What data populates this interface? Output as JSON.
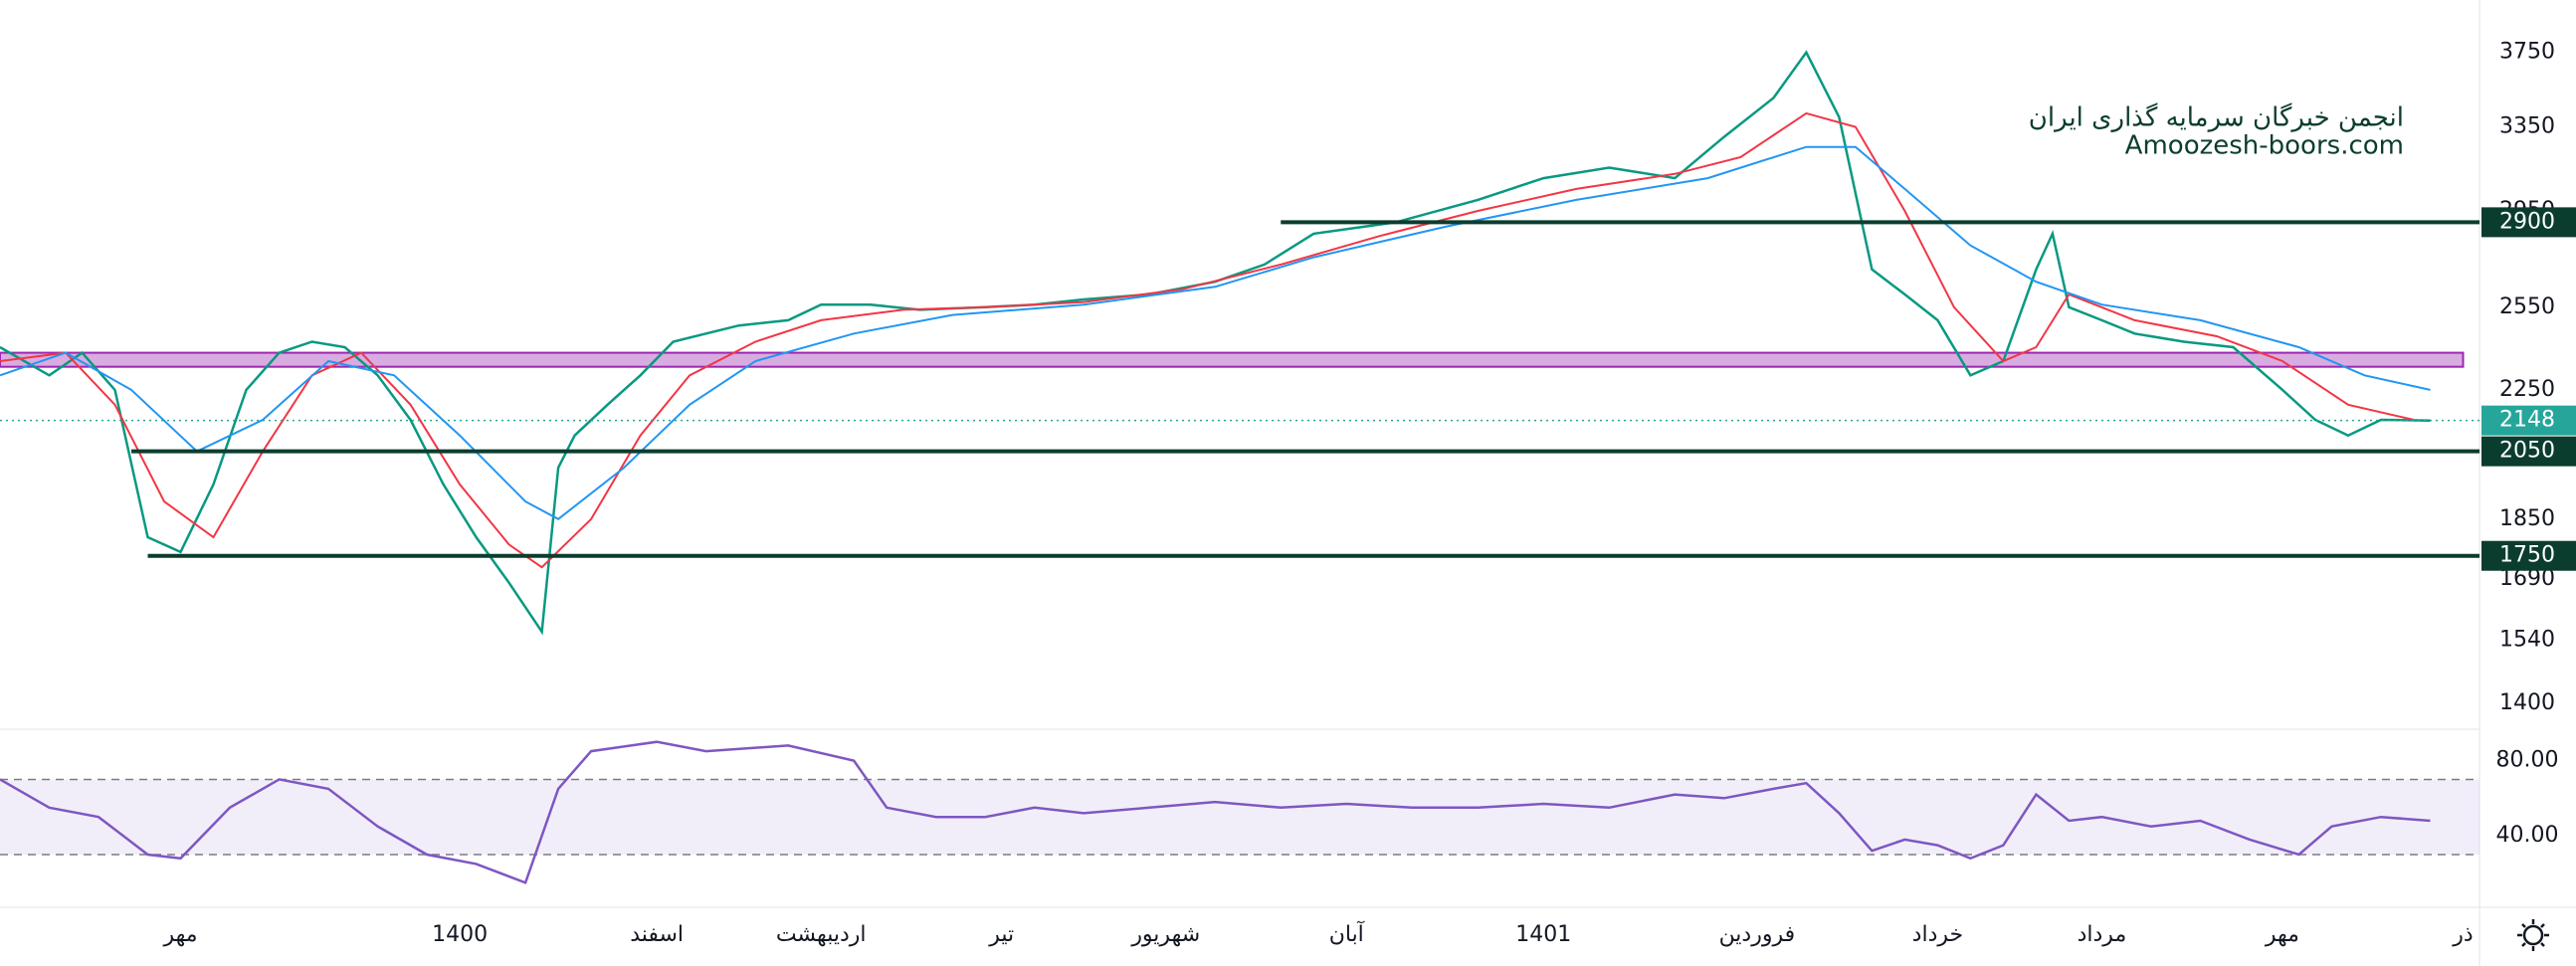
{
  "chart_data": [
    {
      "type": "line",
      "log_scale": true,
      "watermark": [
        "انجمن خبرگان سرمایه گذاری ایران",
        "Amoozesh-boors.com"
      ],
      "xlim": [
        0,
        151
      ],
      "xticks": [
        {
          "value": 11,
          "label": "مهر"
        },
        {
          "value": 28,
          "label": "1400"
        },
        {
          "value": 40,
          "label": "اسفند"
        },
        {
          "value": 50,
          "label": "اردیبهشت"
        },
        {
          "value": 61,
          "label": "تیر"
        },
        {
          "value": 71,
          "label": "شهریور"
        },
        {
          "value": 82,
          "label": "آبان"
        },
        {
          "value": 94,
          "label": "1401"
        },
        {
          "value": 107,
          "label": "فروردین"
        },
        {
          "value": 118,
          "label": "خرداد"
        },
        {
          "value": 128,
          "label": "مرداد"
        },
        {
          "value": 139,
          "label": "مهر"
        },
        {
          "value": 150,
          "label": "ذر"
        }
      ],
      "ylim": [
        1350,
        4060
      ],
      "yticks": [
        3750,
        3350,
        2950,
        2550,
        2250,
        1850,
        1690,
        1540,
        1400
      ],
      "series": [
        {
          "color": "#089981",
          "x": [
            0,
            3,
            5,
            7,
            9,
            11,
            13,
            15,
            17,
            19,
            21,
            23,
            25,
            27,
            29,
            31,
            33,
            34,
            35,
            37,
            39,
            41,
            43,
            45,
            48,
            50,
            53,
            56,
            60,
            63,
            66,
            70,
            74,
            77,
            80,
            85,
            90,
            94,
            98,
            102,
            105,
            108,
            110,
            112,
            114,
            116,
            118,
            120,
            122,
            124,
            125,
            126,
            128,
            130,
            133,
            136,
            139,
            141,
            143,
            145,
            148
          ],
          "values": [
            2400,
            2300,
            2380,
            2250,
            1800,
            1760,
            1950,
            2250,
            2380,
            2420,
            2400,
            2300,
            2150,
            1950,
            1800,
            1680,
            1560,
            2000,
            2100,
            2200,
            2300,
            2420,
            2450,
            2480,
            2500,
            2560,
            2560,
            2540,
            2550,
            2560,
            2580,
            2600,
            2650,
            2720,
            2850,
            2900,
            3000,
            3100,
            3150,
            3100,
            3300,
            3500,
            3750,
            3400,
            2700,
            2600,
            2500,
            2300,
            2350,
            2700,
            2850,
            2550,
            2500,
            2450,
            2420,
            2400,
            2250,
            2150,
            2100,
            2150,
            2148
          ]
        },
        {
          "color": "#f23645",
          "x": [
            0,
            4,
            7,
            10,
            13,
            16,
            19,
            22,
            25,
            28,
            31,
            33,
            36,
            39,
            42,
            46,
            50,
            55,
            60,
            66,
            72,
            78,
            84,
            90,
            96,
            102,
            106,
            110,
            113,
            116,
            119,
            122,
            124,
            126,
            130,
            135,
            139,
            143,
            147
          ],
          "values": [
            2350,
            2380,
            2200,
            1900,
            1800,
            2050,
            2300,
            2380,
            2200,
            1950,
            1780,
            1720,
            1850,
            2100,
            2300,
            2420,
            2500,
            2540,
            2550,
            2570,
            2620,
            2720,
            2840,
            2950,
            3050,
            3120,
            3200,
            3420,
            3350,
            2950,
            2550,
            2350,
            2400,
            2600,
            2500,
            2440,
            2350,
            2200,
            2150
          ]
        },
        {
          "color": "#2196f3",
          "x": [
            0,
            4,
            8,
            12,
            16,
            20,
            24,
            28,
            32,
            34,
            38,
            42,
            46,
            52,
            58,
            66,
            74,
            80,
            88,
            96,
            104,
            110,
            113,
            116,
            120,
            124,
            128,
            134,
            140,
            144,
            148
          ],
          "values": [
            2300,
            2380,
            2250,
            2050,
            2150,
            2350,
            2300,
            2100,
            1900,
            1850,
            2000,
            2200,
            2350,
            2450,
            2520,
            2560,
            2630,
            2750,
            2880,
            3000,
            3100,
            3250,
            3250,
            3050,
            2800,
            2650,
            2560,
            2500,
            2400,
            2300,
            2250
          ]
        }
      ],
      "zone": [
        2330,
        2380
      ],
      "levels": [
        {
          "value": 2900,
          "x0": 78
        },
        {
          "value": 2050,
          "x0": 8
        },
        {
          "value": 1750,
          "x0": 9
        }
      ],
      "last": 2148
    },
    {
      "type": "line",
      "xlim": [
        0,
        151
      ],
      "ylim": [
        3,
        93
      ],
      "yticks": [
        {
          "value": 80,
          "label": "80.00"
        },
        {
          "value": 40,
          "label": "40.00"
        }
      ],
      "band": [
        30,
        70
      ],
      "series": [
        {
          "color": "#7e57c2",
          "x": [
            0,
            3,
            6,
            9,
            11,
            14,
            17,
            20,
            23,
            26,
            29,
            32,
            34,
            36,
            40,
            43,
            48,
            52,
            54,
            57,
            60,
            63,
            66,
            70,
            74,
            78,
            82,
            86,
            90,
            94,
            98,
            102,
            105,
            108,
            110,
            112,
            114,
            116,
            118,
            120,
            122,
            124,
            126,
            128,
            131,
            134,
            137,
            140,
            142,
            145,
            148
          ],
          "values": [
            70,
            55,
            50,
            30,
            28,
            55,
            70,
            65,
            45,
            30,
            25,
            15,
            65,
            85,
            90,
            85,
            88,
            80,
            55,
            50,
            50,
            55,
            52,
            55,
            58,
            55,
            57,
            55,
            55,
            57,
            55,
            62,
            60,
            65,
            68,
            52,
            32,
            38,
            35,
            28,
            35,
            62,
            48,
            50,
            45,
            48,
            38,
            30,
            45,
            50,
            48
          ]
        }
      ]
    }
  ]
}
